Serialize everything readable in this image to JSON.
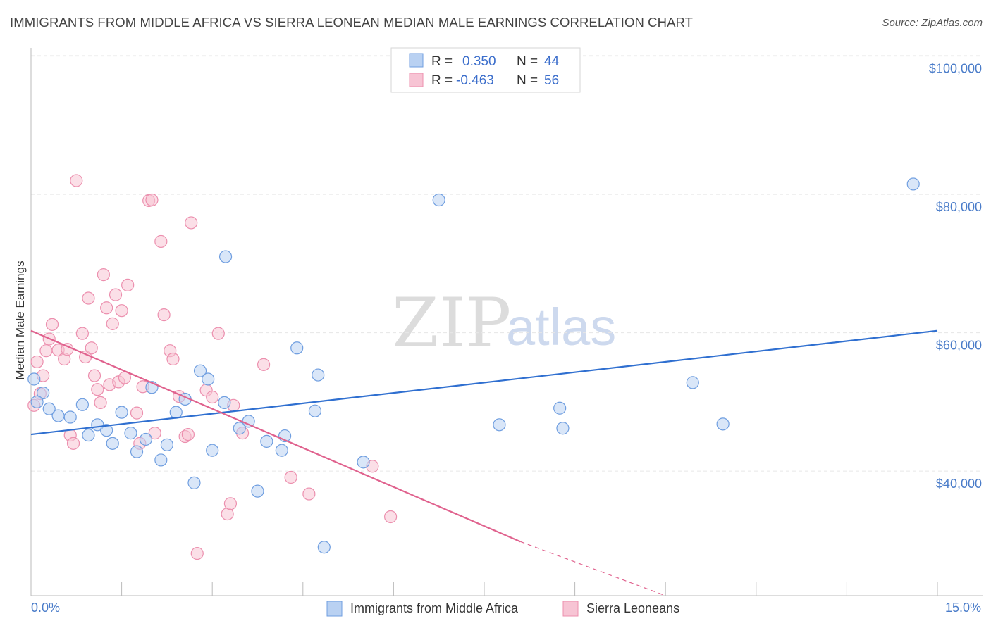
{
  "title": "IMMIGRANTS FROM MIDDLE AFRICA VS SIERRA LEONEAN MEDIAN MALE EARNINGS CORRELATION CHART",
  "source": "Source: ZipAtlas.com",
  "watermark": {
    "zip": "ZIP",
    "atlas": "atlas"
  },
  "legend": {
    "rows": [
      {
        "r_label": "R =",
        "r_value": "0.350",
        "n_label": "N =",
        "n_value": "44"
      },
      {
        "r_label": "R =",
        "r_value": "-0.463",
        "n_label": "N =",
        "n_value": "56"
      }
    ]
  },
  "colors": {
    "blue_fill": "#b9d1f2",
    "blue_stroke": "#6f9ee0",
    "blue_line": "#2f6fd0",
    "pink_fill": "#f7c4d4",
    "pink_stroke": "#ec8fae",
    "pink_line": "#e0628e",
    "grid": "#e6e6e6",
    "axis_label": "#4a7cc9"
  },
  "chart_data": {
    "type": "scatter",
    "title": "IMMIGRANTS FROM MIDDLE AFRICA VS SIERRA LEONEAN MEDIAN MALE EARNINGS CORRELATION CHART",
    "xlabel": "",
    "ylabel": "Median Male Earnings",
    "xlim": [
      0,
      15
    ],
    "ylim": [
      22000,
      102000
    ],
    "x_tick_labels": [
      "0.0%",
      "15.0%"
    ],
    "y_ticks": [
      40000,
      60000,
      80000,
      100000
    ],
    "y_tick_labels": [
      "$40,000",
      "$60,000",
      "$80,000",
      "$100,000"
    ],
    "grid": true,
    "legend_position": "top-center",
    "series": [
      {
        "name": "Immigrants from Middle Africa",
        "color": "#6f9ee0",
        "trend": {
          "x": [
            0,
            15
          ],
          "y": [
            45300,
            60300
          ]
        },
        "points": [
          [
            0.05,
            53300
          ],
          [
            0.2,
            51300
          ],
          [
            0.3,
            49000
          ],
          [
            0.45,
            48000
          ],
          [
            0.65,
            47800
          ],
          [
            0.85,
            49600
          ],
          [
            0.95,
            45200
          ],
          [
            1.1,
            46700
          ],
          [
            1.25,
            45900
          ],
          [
            1.35,
            44000
          ],
          [
            1.5,
            48500
          ],
          [
            1.65,
            45500
          ],
          [
            1.75,
            42800
          ],
          [
            1.9,
            44600
          ],
          [
            2.0,
            52100
          ],
          [
            2.15,
            41600
          ],
          [
            2.25,
            43800
          ],
          [
            2.4,
            48500
          ],
          [
            2.55,
            50400
          ],
          [
            2.7,
            38300
          ],
          [
            2.8,
            54500
          ],
          [
            2.93,
            53300
          ],
          [
            3.0,
            43000
          ],
          [
            3.2,
            49900
          ],
          [
            3.22,
            71000
          ],
          [
            3.45,
            46200
          ],
          [
            3.6,
            47200
          ],
          [
            3.75,
            37100
          ],
          [
            3.9,
            44300
          ],
          [
            4.15,
            43000
          ],
          [
            4.2,
            45100
          ],
          [
            4.4,
            57800
          ],
          [
            4.7,
            48700
          ],
          [
            4.75,
            53900
          ],
          [
            4.85,
            29000
          ],
          [
            5.5,
            41300
          ],
          [
            6.75,
            79200
          ],
          [
            7.75,
            46700
          ],
          [
            8.75,
            49100
          ],
          [
            8.8,
            46200
          ],
          [
            10.95,
            52800
          ],
          [
            11.45,
            46800
          ],
          [
            14.6,
            81500
          ],
          [
            0.1,
            50000
          ]
        ]
      },
      {
        "name": "Sierra Leoneans",
        "color": "#ec8fae",
        "trend": {
          "x": [
            0,
            8.1
          ],
          "y": [
            60300,
            29800
          ]
        },
        "trend_dashed": {
          "x": [
            8.1,
            10.5
          ],
          "y": [
            29800,
            20500
          ]
        },
        "points": [
          [
            0.05,
            49500
          ],
          [
            0.1,
            55800
          ],
          [
            0.15,
            51200
          ],
          [
            0.2,
            53800
          ],
          [
            0.25,
            57400
          ],
          [
            0.3,
            59100
          ],
          [
            0.35,
            61200
          ],
          [
            0.45,
            57500
          ],
          [
            0.55,
            56200
          ],
          [
            0.6,
            57600
          ],
          [
            0.65,
            45200
          ],
          [
            0.7,
            44000
          ],
          [
            0.75,
            82000
          ],
          [
            0.85,
            59900
          ],
          [
            0.9,
            56500
          ],
          [
            0.95,
            65000
          ],
          [
            1.0,
            57800
          ],
          [
            1.05,
            53800
          ],
          [
            1.1,
            51800
          ],
          [
            1.15,
            49900
          ],
          [
            1.2,
            68400
          ],
          [
            1.25,
            63600
          ],
          [
            1.3,
            52500
          ],
          [
            1.35,
            61300
          ],
          [
            1.4,
            65500
          ],
          [
            1.45,
            52900
          ],
          [
            1.5,
            63200
          ],
          [
            1.55,
            53500
          ],
          [
            1.6,
            66900
          ],
          [
            1.75,
            48400
          ],
          [
            1.8,
            44000
          ],
          [
            1.85,
            52200
          ],
          [
            1.95,
            79100
          ],
          [
            2.0,
            79200
          ],
          [
            2.05,
            45500
          ],
          [
            2.15,
            73200
          ],
          [
            2.2,
            62600
          ],
          [
            2.3,
            57400
          ],
          [
            2.35,
            56200
          ],
          [
            2.45,
            50800
          ],
          [
            2.55,
            45000
          ],
          [
            2.65,
            75900
          ],
          [
            2.75,
            28100
          ],
          [
            2.9,
            51700
          ],
          [
            3.0,
            50700
          ],
          [
            3.1,
            59900
          ],
          [
            3.25,
            33800
          ],
          [
            3.3,
            35300
          ],
          [
            3.35,
            49500
          ],
          [
            3.5,
            45500
          ],
          [
            3.85,
            55400
          ],
          [
            4.3,
            39100
          ],
          [
            4.6,
            36700
          ],
          [
            5.65,
            40700
          ],
          [
            5.95,
            33400
          ],
          [
            2.6,
            45300
          ]
        ]
      }
    ]
  }
}
